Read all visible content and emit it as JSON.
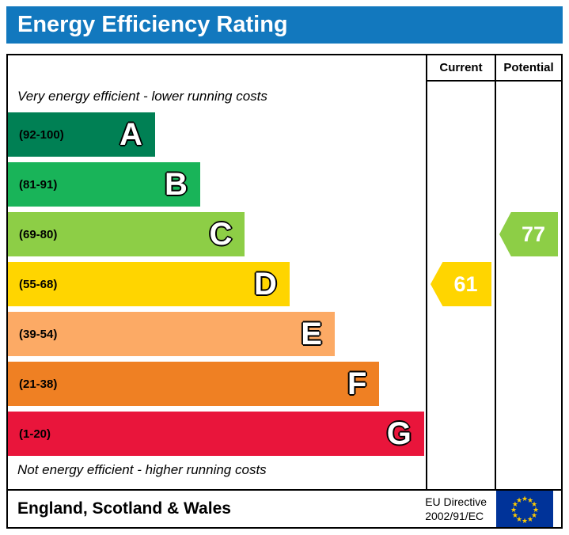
{
  "title": "Energy Efficiency Rating",
  "header_color": "#1278be",
  "columns": {
    "current_label": "Current",
    "potential_label": "Potential"
  },
  "notes": {
    "top": "Very energy efficient - lower running costs",
    "bottom": "Not energy efficient - higher running costs"
  },
  "chart_data": {
    "type": "bar",
    "title": "Energy Efficiency Rating",
    "bands": [
      {
        "letter": "A",
        "range": "(92-100)",
        "color": "#008054",
        "width_pct": 35.2
      },
      {
        "letter": "B",
        "range": "(81-91)",
        "color": "#19b459",
        "width_pct": 46.0
      },
      {
        "letter": "C",
        "range": "(69-80)",
        "color": "#8dce46",
        "width_pct": 56.7
      },
      {
        "letter": "D",
        "range": "(55-68)",
        "color": "#ffd500",
        "width_pct": 67.4
      },
      {
        "letter": "E",
        "range": "(39-54)",
        "color": "#fcaa65",
        "width_pct": 78.2
      },
      {
        "letter": "F",
        "range": "(21-38)",
        "color": "#ef8023",
        "width_pct": 88.9
      },
      {
        "letter": "G",
        "range": "(1-20)",
        "color": "#e9153b",
        "width_pct": 99.6
      }
    ],
    "current": {
      "value": 61,
      "band": "D",
      "color": "#ffd500"
    },
    "potential": {
      "value": 77,
      "band": "C",
      "color": "#8dce46"
    }
  },
  "footer": {
    "region": "England, Scotland & Wales",
    "directive": [
      "EU Directive",
      "2002/91/EC"
    ]
  },
  "flag": {
    "background": "#003399",
    "star_color": "#ffcc00"
  }
}
